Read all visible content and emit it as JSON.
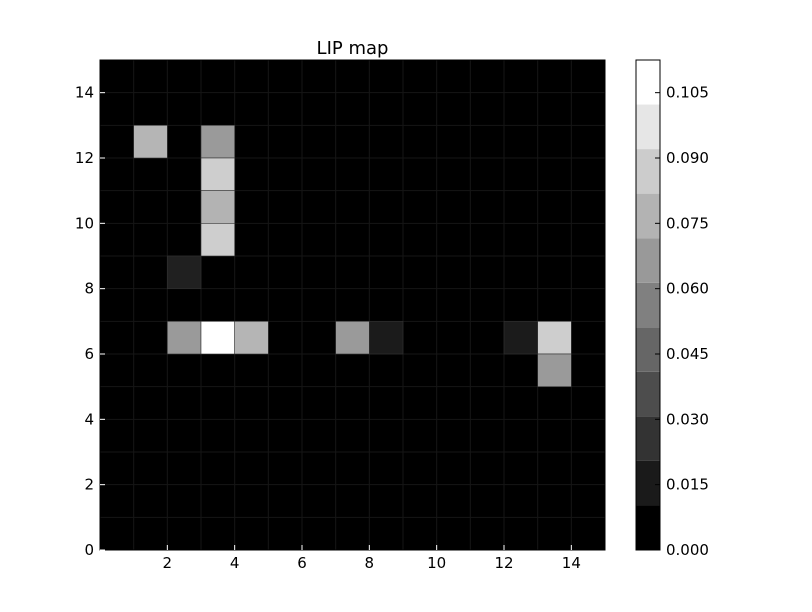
{
  "chart_data": {
    "type": "heatmap",
    "title": "LIP map",
    "xlabel": "",
    "ylabel": "",
    "xlim": [
      0,
      15
    ],
    "ylim": [
      0,
      15
    ],
    "x_ticks": [
      2,
      4,
      6,
      8,
      10,
      12,
      14
    ],
    "y_ticks": [
      0,
      2,
      4,
      6,
      8,
      10,
      12,
      14
    ],
    "x_tick_labels": [
      "2",
      "4",
      "6",
      "8",
      "10",
      "12",
      "14"
    ],
    "y_tick_labels": [
      "0",
      "2",
      "4",
      "6",
      "8",
      "10",
      "12",
      "14"
    ],
    "grid": false,
    "colormap": "gray",
    "color_min": 0.0,
    "color_max": 0.1125,
    "colorbar": {
      "ticks": [
        0.0,
        0.015,
        0.03,
        0.045,
        0.06,
        0.075,
        0.09,
        0.105
      ],
      "tick_labels": [
        "0.000",
        "0.015",
        "0.030",
        "0.045",
        "0.060",
        "0.075",
        "0.090",
        "0.105"
      ],
      "levels": 11
    },
    "background_value": 0.0,
    "cells": [
      {
        "x": 1,
        "y": 12,
        "value": 0.08
      },
      {
        "x": 3,
        "y": 12,
        "value": 0.068
      },
      {
        "x": 3,
        "y": 11,
        "value": 0.091
      },
      {
        "x": 3,
        "y": 10,
        "value": 0.079
      },
      {
        "x": 3,
        "y": 9,
        "value": 0.091
      },
      {
        "x": 2,
        "y": 8,
        "value": 0.014
      },
      {
        "x": 2,
        "y": 6,
        "value": 0.068
      },
      {
        "x": 3,
        "y": 6,
        "value": 0.1125
      },
      {
        "x": 4,
        "y": 6,
        "value": 0.08
      },
      {
        "x": 7,
        "y": 6,
        "value": 0.068
      },
      {
        "x": 8,
        "y": 6,
        "value": 0.012
      },
      {
        "x": 12,
        "y": 6,
        "value": 0.012
      },
      {
        "x": 13,
        "y": 6,
        "value": 0.091
      },
      {
        "x": 13,
        "y": 5,
        "value": 0.068
      }
    ]
  }
}
